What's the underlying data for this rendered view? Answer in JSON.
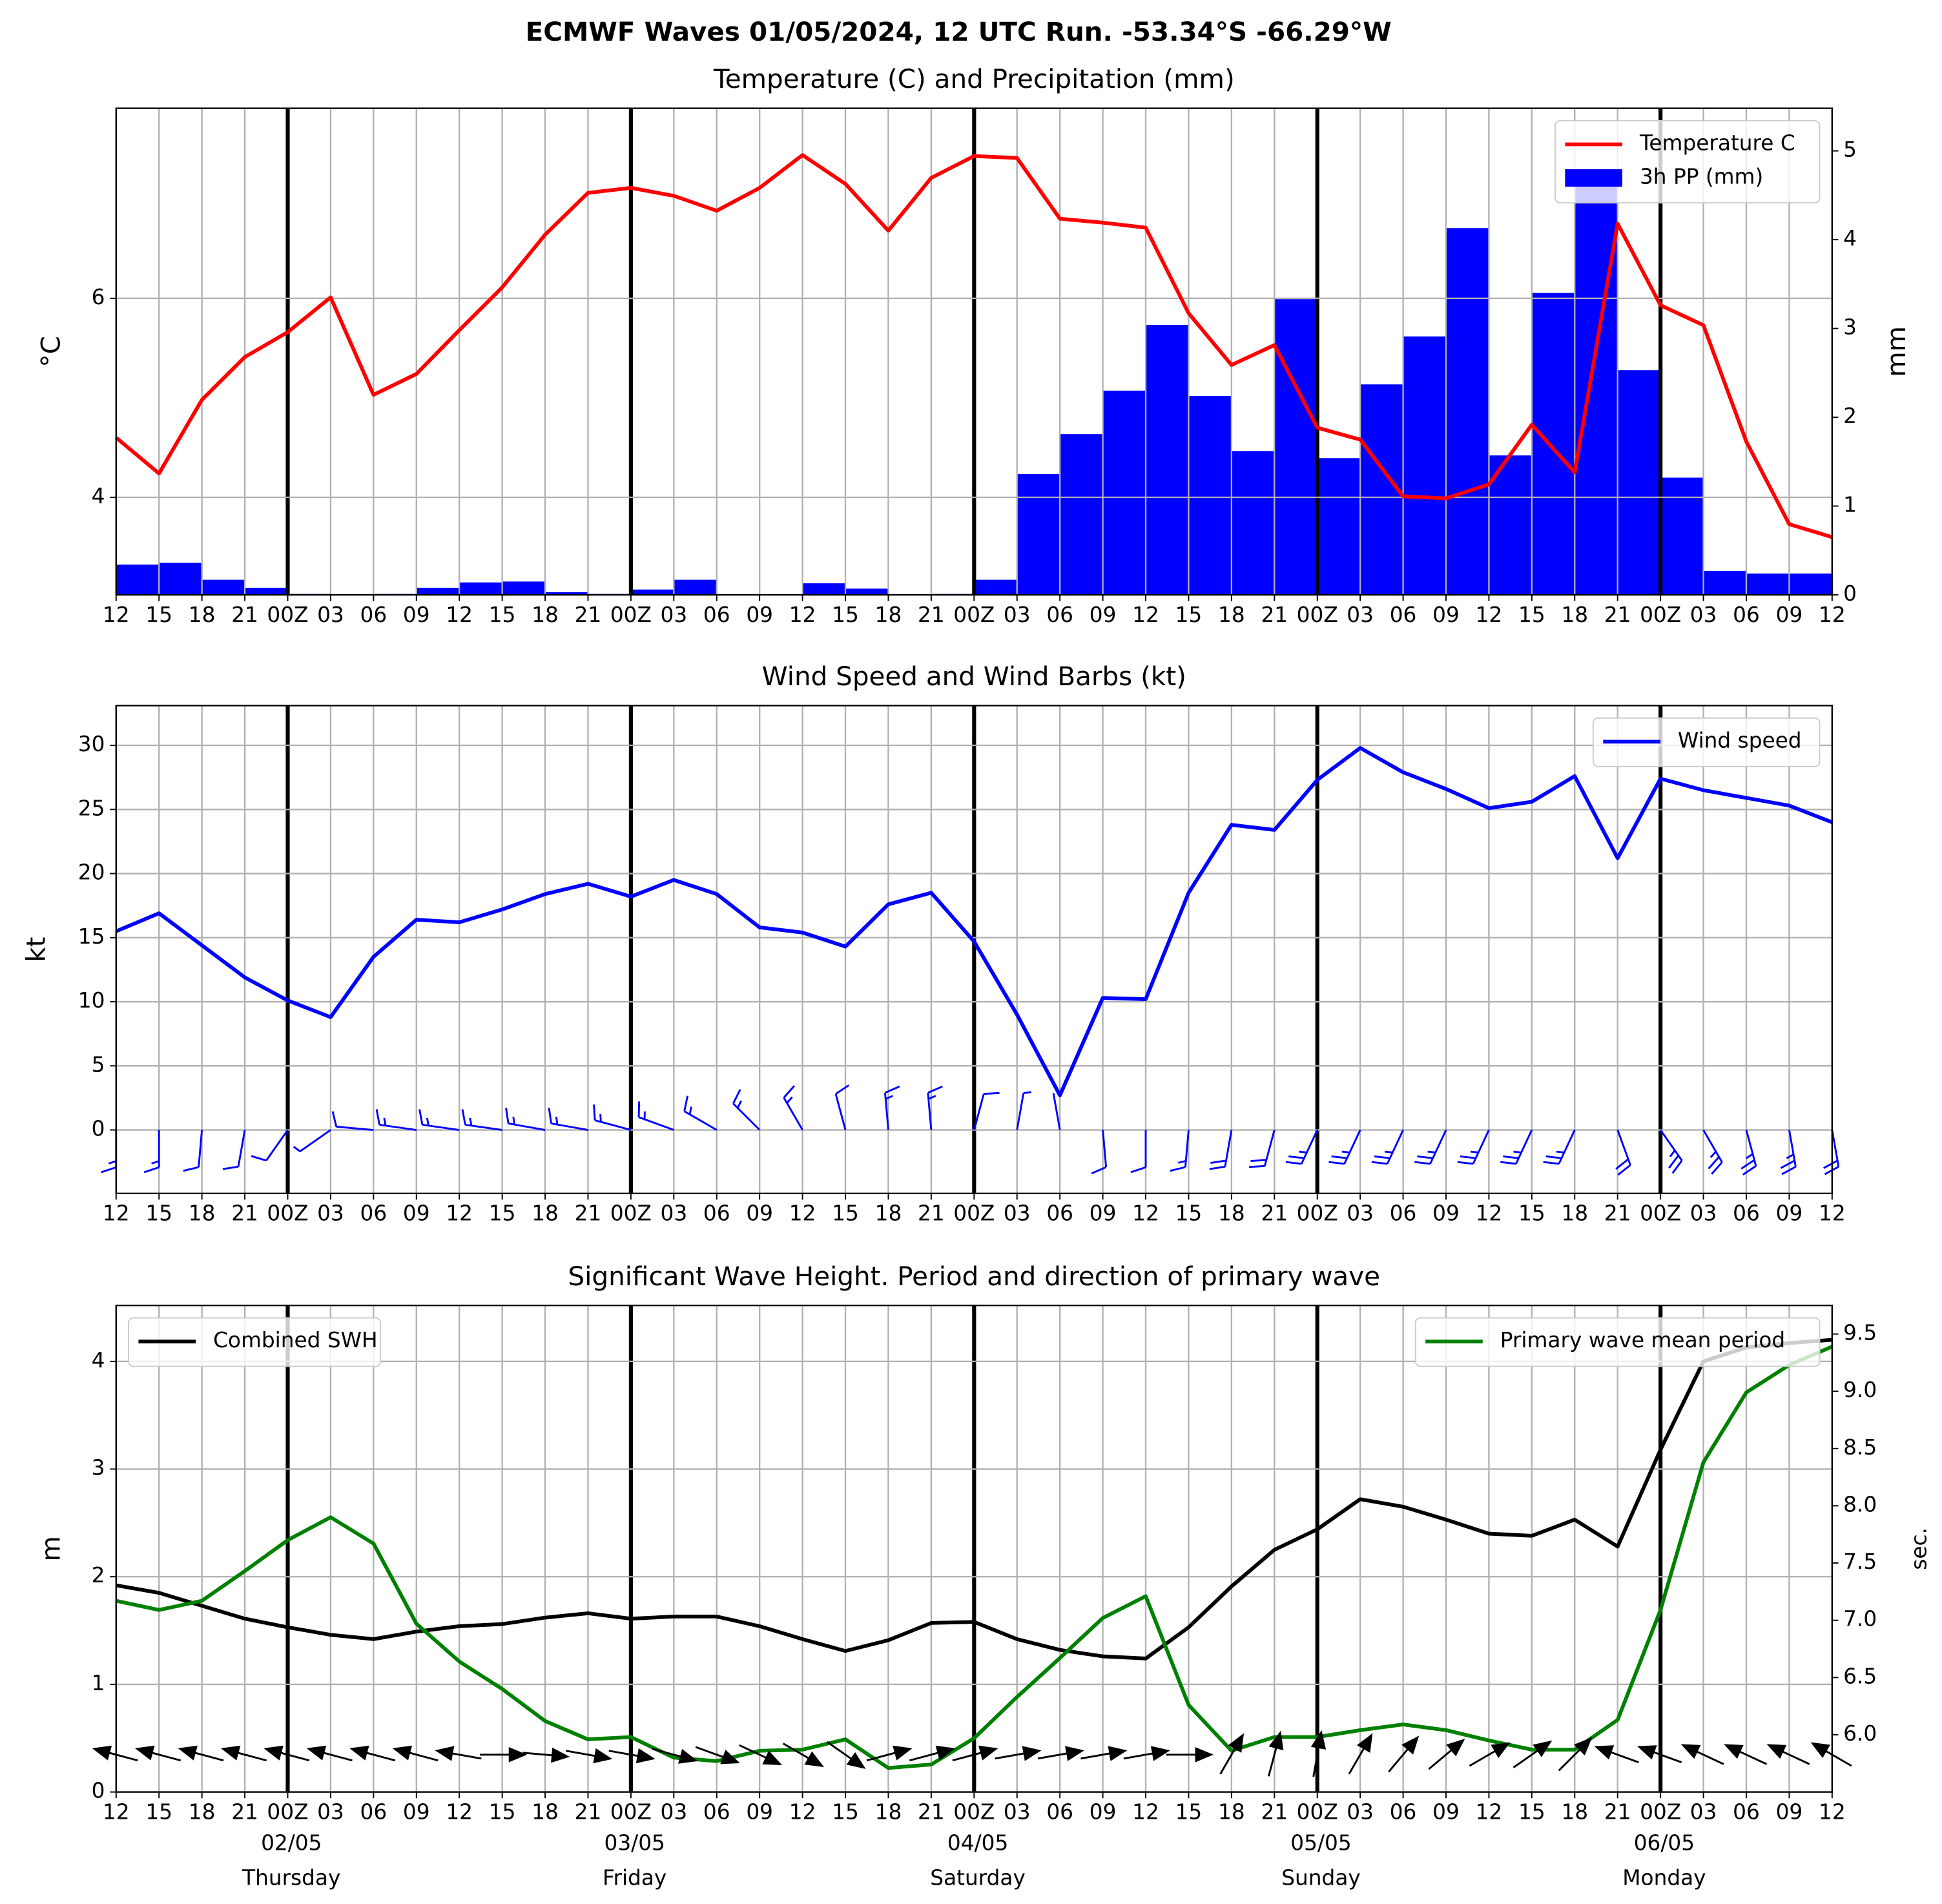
{
  "title": "ECMWF Waves 01/05/2024, 12 UTC Run. -53.34°S -66.29°W",
  "chart_data": [
    {
      "type": "combo",
      "title": "Temperature (C) and Precipitation (mm)",
      "ylabel": "°C",
      "y2label": "mm",
      "categories": [
        "12",
        "15",
        "18",
        "21",
        "00Z",
        "03",
        "06",
        "09",
        "12",
        "15",
        "18",
        "21",
        "00Z",
        "03",
        "06",
        "09",
        "12",
        "15",
        "18",
        "21",
        "00Z",
        "03",
        "06",
        "09",
        "12",
        "15",
        "18",
        "21",
        "00Z",
        "03",
        "06",
        "09",
        "12",
        "15",
        "18",
        "21",
        "00Z",
        "03",
        "06",
        "09",
        "12"
      ],
      "series": [
        {
          "name": "Temperature C",
          "type": "line",
          "color": "#ff0000",
          "values": [
            4.6,
            4.24,
            4.98,
            5.41,
            5.66,
            6.01,
            5.03,
            5.24,
            5.68,
            6.11,
            6.64,
            7.06,
            7.11,
            7.03,
            6.88,
            7.11,
            7.44,
            7.15,
            6.68,
            7.21,
            7.43,
            7.41,
            6.8,
            6.76,
            6.71,
            5.85,
            5.33,
            5.53,
            4.7,
            4.58,
            4.01,
            3.99,
            4.13,
            4.73,
            4.25,
            6.75,
            5.93,
            5.73,
            4.56,
            3.73,
            3.6
          ]
        },
        {
          "name": "3h PP (mm)",
          "type": "bar",
          "axis": "y2",
          "color": "#0000ff",
          "values": [
            0.34,
            0.36,
            0.17,
            0.08,
            0.01,
            0,
            0.01,
            0.08,
            0.14,
            0.15,
            0.03,
            0.01,
            0.06,
            0.17,
            0,
            0,
            0.13,
            0.07,
            0,
            0.01,
            0.17,
            1.36,
            1.81,
            2.3,
            3.04,
            2.24,
            1.62,
            3.33,
            1.54,
            2.37,
            2.91,
            4.13,
            1.57,
            3.4,
            4.65,
            2.53,
            1.32,
            0.27,
            0.24,
            0.24,
            null
          ]
        }
      ],
      "ylim": [
        3.02,
        7.91
      ],
      "yticks": [
        4,
        6
      ],
      "y2lim": [
        0,
        5.48
      ],
      "y2ticks": [
        0,
        1,
        2,
        3,
        4,
        5
      ],
      "grid": true,
      "legend": "upper right"
    },
    {
      "type": "line",
      "title": "Wind Speed and Wind Barbs (kt)",
      "ylabel": "kt",
      "categories": [
        "12",
        "15",
        "18",
        "21",
        "00Z",
        "03",
        "06",
        "09",
        "12",
        "15",
        "18",
        "21",
        "00Z",
        "03",
        "06",
        "09",
        "12",
        "15",
        "18",
        "21",
        "00Z",
        "03",
        "06",
        "09",
        "12",
        "15",
        "18",
        "21",
        "00Z",
        "03",
        "06",
        "09",
        "12",
        "15",
        "18",
        "21",
        "00Z",
        "03",
        "06",
        "09",
        "12"
      ],
      "series": [
        {
          "name": "Wind speed",
          "type": "line",
          "color": "#0000ff",
          "values": [
            15.5,
            16.9,
            14.4,
            11.9,
            10.1,
            8.8,
            13.5,
            16.4,
            16.2,
            17.2,
            18.4,
            19.2,
            18.2,
            19.5,
            18.4,
            15.8,
            15.4,
            14.3,
            17.6,
            18.5,
            14.7,
            9.0,
            2.7,
            10.3,
            10.2,
            18.5,
            23.8,
            23.4,
            27.3,
            29.8,
            27.9,
            26.6,
            25.1,
            25.6,
            27.6,
            21.2,
            27.4,
            26.5,
            25.9,
            25.3,
            24.0
          ]
        }
      ],
      "wind_direction": [
        180,
        180,
        185,
        190,
        215,
        235,
        275,
        278,
        278,
        278,
        280,
        280,
        285,
        290,
        300,
        315,
        330,
        345,
        355,
        355,
        15,
        10,
        350,
        175,
        180,
        185,
        190,
        195,
        205,
        205,
        205,
        205,
        205,
        205,
        205,
        160,
        145,
        150,
        165,
        170,
        170
      ],
      "ylim": [
        -4.95,
        33.1
      ],
      "yticks": [
        0,
        5,
        10,
        15,
        20,
        25,
        30
      ],
      "grid": true,
      "legend": "upper right"
    },
    {
      "type": "combo",
      "title": "Significant Wave Height. Period and direction of primary wave",
      "ylabel": "m",
      "y2label": "sec.",
      "categories": [
        "12",
        "15",
        "18",
        "21",
        "00Z",
        "03",
        "06",
        "09",
        "12",
        "15",
        "18",
        "21",
        "00Z",
        "03",
        "06",
        "09",
        "12",
        "15",
        "18",
        "21",
        "00Z",
        "03",
        "06",
        "09",
        "12",
        "15",
        "18",
        "21",
        "00Z",
        "03",
        "06",
        "09",
        "12",
        "15",
        "18",
        "21",
        "00Z",
        "03",
        "06",
        "09",
        "12"
      ],
      "series": [
        {
          "name": "Combined SWH",
          "type": "line",
          "color": "#000000",
          "legend": "upper left",
          "values": [
            1.92,
            1.85,
            1.73,
            1.61,
            1.53,
            1.46,
            1.42,
            1.49,
            1.54,
            1.56,
            1.62,
            1.66,
            1.61,
            1.63,
            1.63,
            1.54,
            1.42,
            1.31,
            1.41,
            1.57,
            1.58,
            1.42,
            1.32,
            1.26,
            1.24,
            1.53,
            1.91,
            2.25,
            2.44,
            2.72,
            2.65,
            2.53,
            2.4,
            2.38,
            2.53,
            2.28,
            3.18,
            4.0,
            4.13,
            4.17,
            4.2
          ]
        },
        {
          "name": "Primary wave mean period",
          "type": "line",
          "axis": "y2",
          "color": "#008000",
          "legend": "upper right",
          "values": [
            7.17,
            7.09,
            7.17,
            7.43,
            7.7,
            7.9,
            7.67,
            6.97,
            6.64,
            6.4,
            6.12,
            5.96,
            5.98,
            5.8,
            5.77,
            5.86,
            5.87,
            5.96,
            5.71,
            5.74,
            5.97,
            6.33,
            6.67,
            7.02,
            7.21,
            6.26,
            5.86,
            5.98,
            5.98,
            6.04,
            6.09,
            6.04,
            5.95,
            5.87,
            5.87,
            6.13,
            7.09,
            8.38,
            8.99,
            9.23,
            9.39
          ]
        }
      ],
      "wave_direction": [
        285,
        285,
        285,
        285,
        285,
        285,
        285,
        285,
        280,
        90,
        95,
        100,
        100,
        105,
        110,
        115,
        120,
        125,
        75,
        75,
        75,
        80,
        80,
        80,
        80,
        90,
        30,
        15,
        10,
        30,
        40,
        50,
        60,
        55,
        45,
        290,
        290,
        295,
        295,
        295,
        300
      ],
      "day_labels": [
        {
          "date": "02/05",
          "day": "Thursday"
        },
        {
          "date": "03/05",
          "day": "Friday"
        },
        {
          "date": "04/05",
          "day": "Saturday"
        },
        {
          "date": "05/05",
          "day": "Sunday"
        },
        {
          "date": "06/05",
          "day": "Monday"
        }
      ],
      "ylim": [
        0,
        4.52
      ],
      "yticks": [
        0,
        1,
        2,
        3,
        4
      ],
      "y2lim": [
        5.5,
        9.75
      ],
      "y2ticks": [
        {
          "value": 6,
          "label": "6.0"
        },
        6.5,
        {
          "value": 7,
          "label": "7.0"
        },
        7.5,
        {
          "value": 8,
          "label": "8.0"
        },
        8.5,
        {
          "value": 9,
          "label": "9.0"
        },
        9.5
      ],
      "y2color": "#008000",
      "grid": true
    }
  ]
}
